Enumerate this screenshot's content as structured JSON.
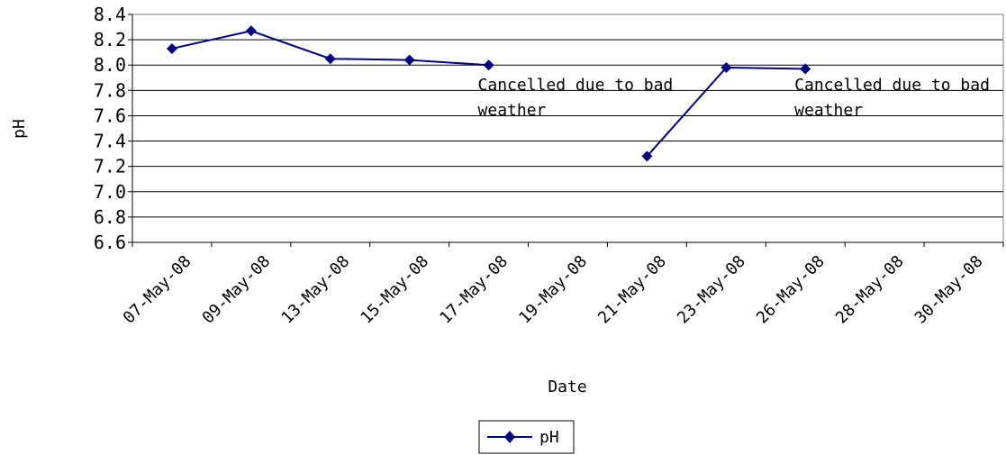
{
  "chart_data": {
    "type": "line",
    "categories": [
      "07-May-08",
      "09-May-08",
      "13-May-08",
      "15-May-08",
      "17-May-08",
      "19-May-08",
      "21-May-08",
      "23-May-08",
      "26-May-08",
      "28-May-08",
      "30-May-08"
    ],
    "series": [
      {
        "name": "pH",
        "color": "#000080",
        "marker": "diamond",
        "values": [
          8.13,
          8.27,
          8.05,
          8.04,
          8.0,
          null,
          7.28,
          7.98,
          7.97,
          null,
          null
        ]
      }
    ],
    "xlabel": "Date",
    "ylabel": "pH",
    "ylim": [
      6.6,
      8.4
    ],
    "yticks": [
      "8.4",
      "8.2",
      "8.0",
      "7.8",
      "7.6",
      "7.4",
      "7.2",
      "7.0",
      "6.8",
      "6.6"
    ],
    "grid": true,
    "legend": "bottom-center",
    "annotations": [
      {
        "lines": [
          "Cancelled due to bad",
          "weather"
        ],
        "category": "19-May-08"
      },
      {
        "lines": [
          "Cancelled due to bad",
          "weather"
        ],
        "category": "28-May-08"
      }
    ]
  }
}
